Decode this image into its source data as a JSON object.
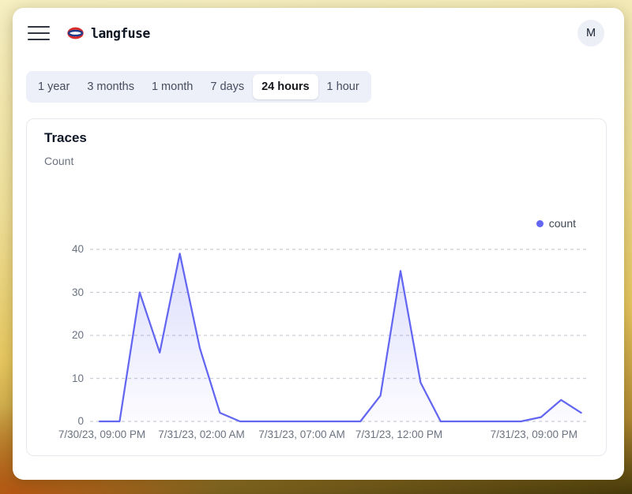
{
  "window": {
    "header": {
      "brand": "langfuse",
      "avatar_initial": "M"
    },
    "time_range_tabs": [
      {
        "label": "1 year",
        "selected": false
      },
      {
        "label": "3 months",
        "selected": false
      },
      {
        "label": "1 month",
        "selected": false
      },
      {
        "label": "7 days",
        "selected": false
      },
      {
        "label": "24 hours",
        "selected": true
      },
      {
        "label": "1 hour",
        "selected": false
      }
    ],
    "card": {
      "title": "Traces",
      "subtitle": "Count"
    }
  },
  "chart_data": {
    "type": "area",
    "title": "Traces",
    "ylabel": "Count",
    "interval": "hourly",
    "num_points": 25,
    "series": [
      {
        "name": "count",
        "values": [
          0,
          0,
          30,
          16,
          39,
          17,
          2,
          0,
          0,
          0,
          0,
          0,
          0,
          0,
          6,
          35,
          9,
          0,
          0,
          0,
          0,
          0,
          1,
          5,
          2
        ]
      }
    ],
    "x_tick_labels": [
      "7/30/23, 09:00 PM",
      "7/31/23, 02:00 AM",
      "7/31/23, 07:00 AM",
      "7/31/23, 12:00 PM",
      "7/31/23, 09:00 PM"
    ],
    "x_tick_point_indices": [
      0,
      5,
      10,
      15,
      24
    ],
    "yticks": [
      40,
      30,
      20,
      10,
      0
    ],
    "ylim": [
      0,
      40
    ],
    "grid": "horizontal-dashed",
    "legend": {
      "label": "count",
      "position": "top-right"
    },
    "colors": {
      "line": "#6366f1",
      "area_top": "rgba(99,102,241,0.22)",
      "area_bottom": "rgba(99,102,241,0.02)",
      "grid": "#c9ced6"
    }
  }
}
